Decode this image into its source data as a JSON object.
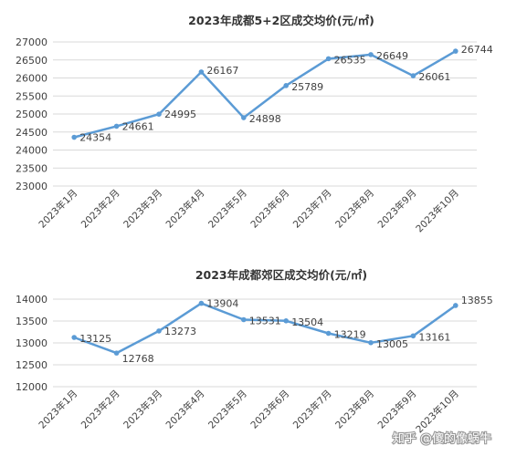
{
  "chart_data": [
    {
      "type": "line",
      "title": "2023年成都5+2区成交均价(元/㎡)",
      "xlabel": "",
      "ylabel": "",
      "categories": [
        "2023年1月",
        "2023年2月",
        "2023年3月",
        "2023年4月",
        "2023年5月",
        "2023年6月",
        "2023年7月",
        "2023年8月",
        "2023年9月",
        "2023年10月"
      ],
      "values": [
        24354,
        24661,
        24995,
        26167,
        24898,
        25789,
        26535,
        26649,
        26061,
        26744
      ],
      "value_labels": [
        "24354",
        "24661",
        "24995",
        "26167",
        "24898",
        "25789",
        "26535",
        "26649",
        "26061",
        "26744"
      ],
      "ylim": [
        23000,
        27000
      ],
      "yticks": [
        "27000",
        "26500",
        "26000",
        "25500",
        "25000",
        "24500",
        "24000",
        "23500",
        "23000"
      ],
      "grid": true,
      "line_color": "#5B9BD5"
    },
    {
      "type": "line",
      "title": "2023年成都郊区成交均价(元/㎡)",
      "xlabel": "",
      "ylabel": "",
      "categories": [
        "2023年1月",
        "2023年2月",
        "2023年3月",
        "2023年4月",
        "2023年5月",
        "2023年6月",
        "2023年7月",
        "2023年8月",
        "2023年9月",
        "2023年10月"
      ],
      "values": [
        13125,
        12768,
        13273,
        13904,
        13531,
        13504,
        13219,
        13005,
        13161,
        13855
      ],
      "value_labels": [
        "13125",
        "12768",
        "13273",
        "13904",
        "13531",
        "13504",
        "13219",
        "13005",
        "13161",
        "13855"
      ],
      "ylim": [
        12000,
        14000
      ],
      "yticks": [
        "14000",
        "13500",
        "13000",
        "12500",
        "12000"
      ],
      "grid": true,
      "line_color": "#5B9BD5"
    }
  ],
  "watermark": "知乎 @傻的像蜗牛"
}
